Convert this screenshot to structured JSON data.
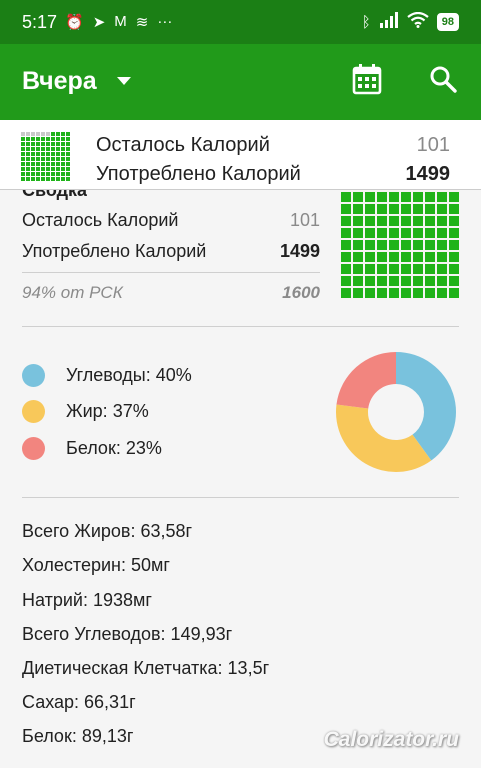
{
  "status": {
    "time": "5:17",
    "battery": "98"
  },
  "appbar": {
    "title": "Вчера"
  },
  "sticky": {
    "remaining_label": "Осталось Калорий",
    "remaining_value": "101",
    "consumed_label": "Употреблено Калорий",
    "consumed_value": "1499"
  },
  "summary": {
    "heading": "Сводка",
    "remaining_label": "Осталось Калорий",
    "remaining_value": "101",
    "consumed_label": "Употреблено Калорий",
    "consumed_value": "1499",
    "rsk_label": "94% от РСК",
    "rsk_value": "1600",
    "fill_fraction": 0.94
  },
  "macros": [
    {
      "label": "Углеводы: 40%",
      "color": "#79c2dd",
      "percent": 40
    },
    {
      "label": "Жир: 37%",
      "color": "#f8c85a",
      "percent": 37
    },
    {
      "label": "Белок: 23%",
      "color": "#f2857f",
      "percent": 23
    }
  ],
  "nutrients": [
    "Всего Жиров: 63,58г",
    "Холестерин: 50мг",
    "Натрий: 1938мг",
    "Всего Углеводов: 149,93г",
    "Диетическая Клетчатка: 13,5г",
    "Сахар: 66,31г",
    "Белок: 89,13г"
  ],
  "watermark": "Calorizator.ru",
  "colors": {
    "statusbar": "#1b7f15",
    "appbar": "#219a1a",
    "grid_green": "#1fb31a"
  }
}
